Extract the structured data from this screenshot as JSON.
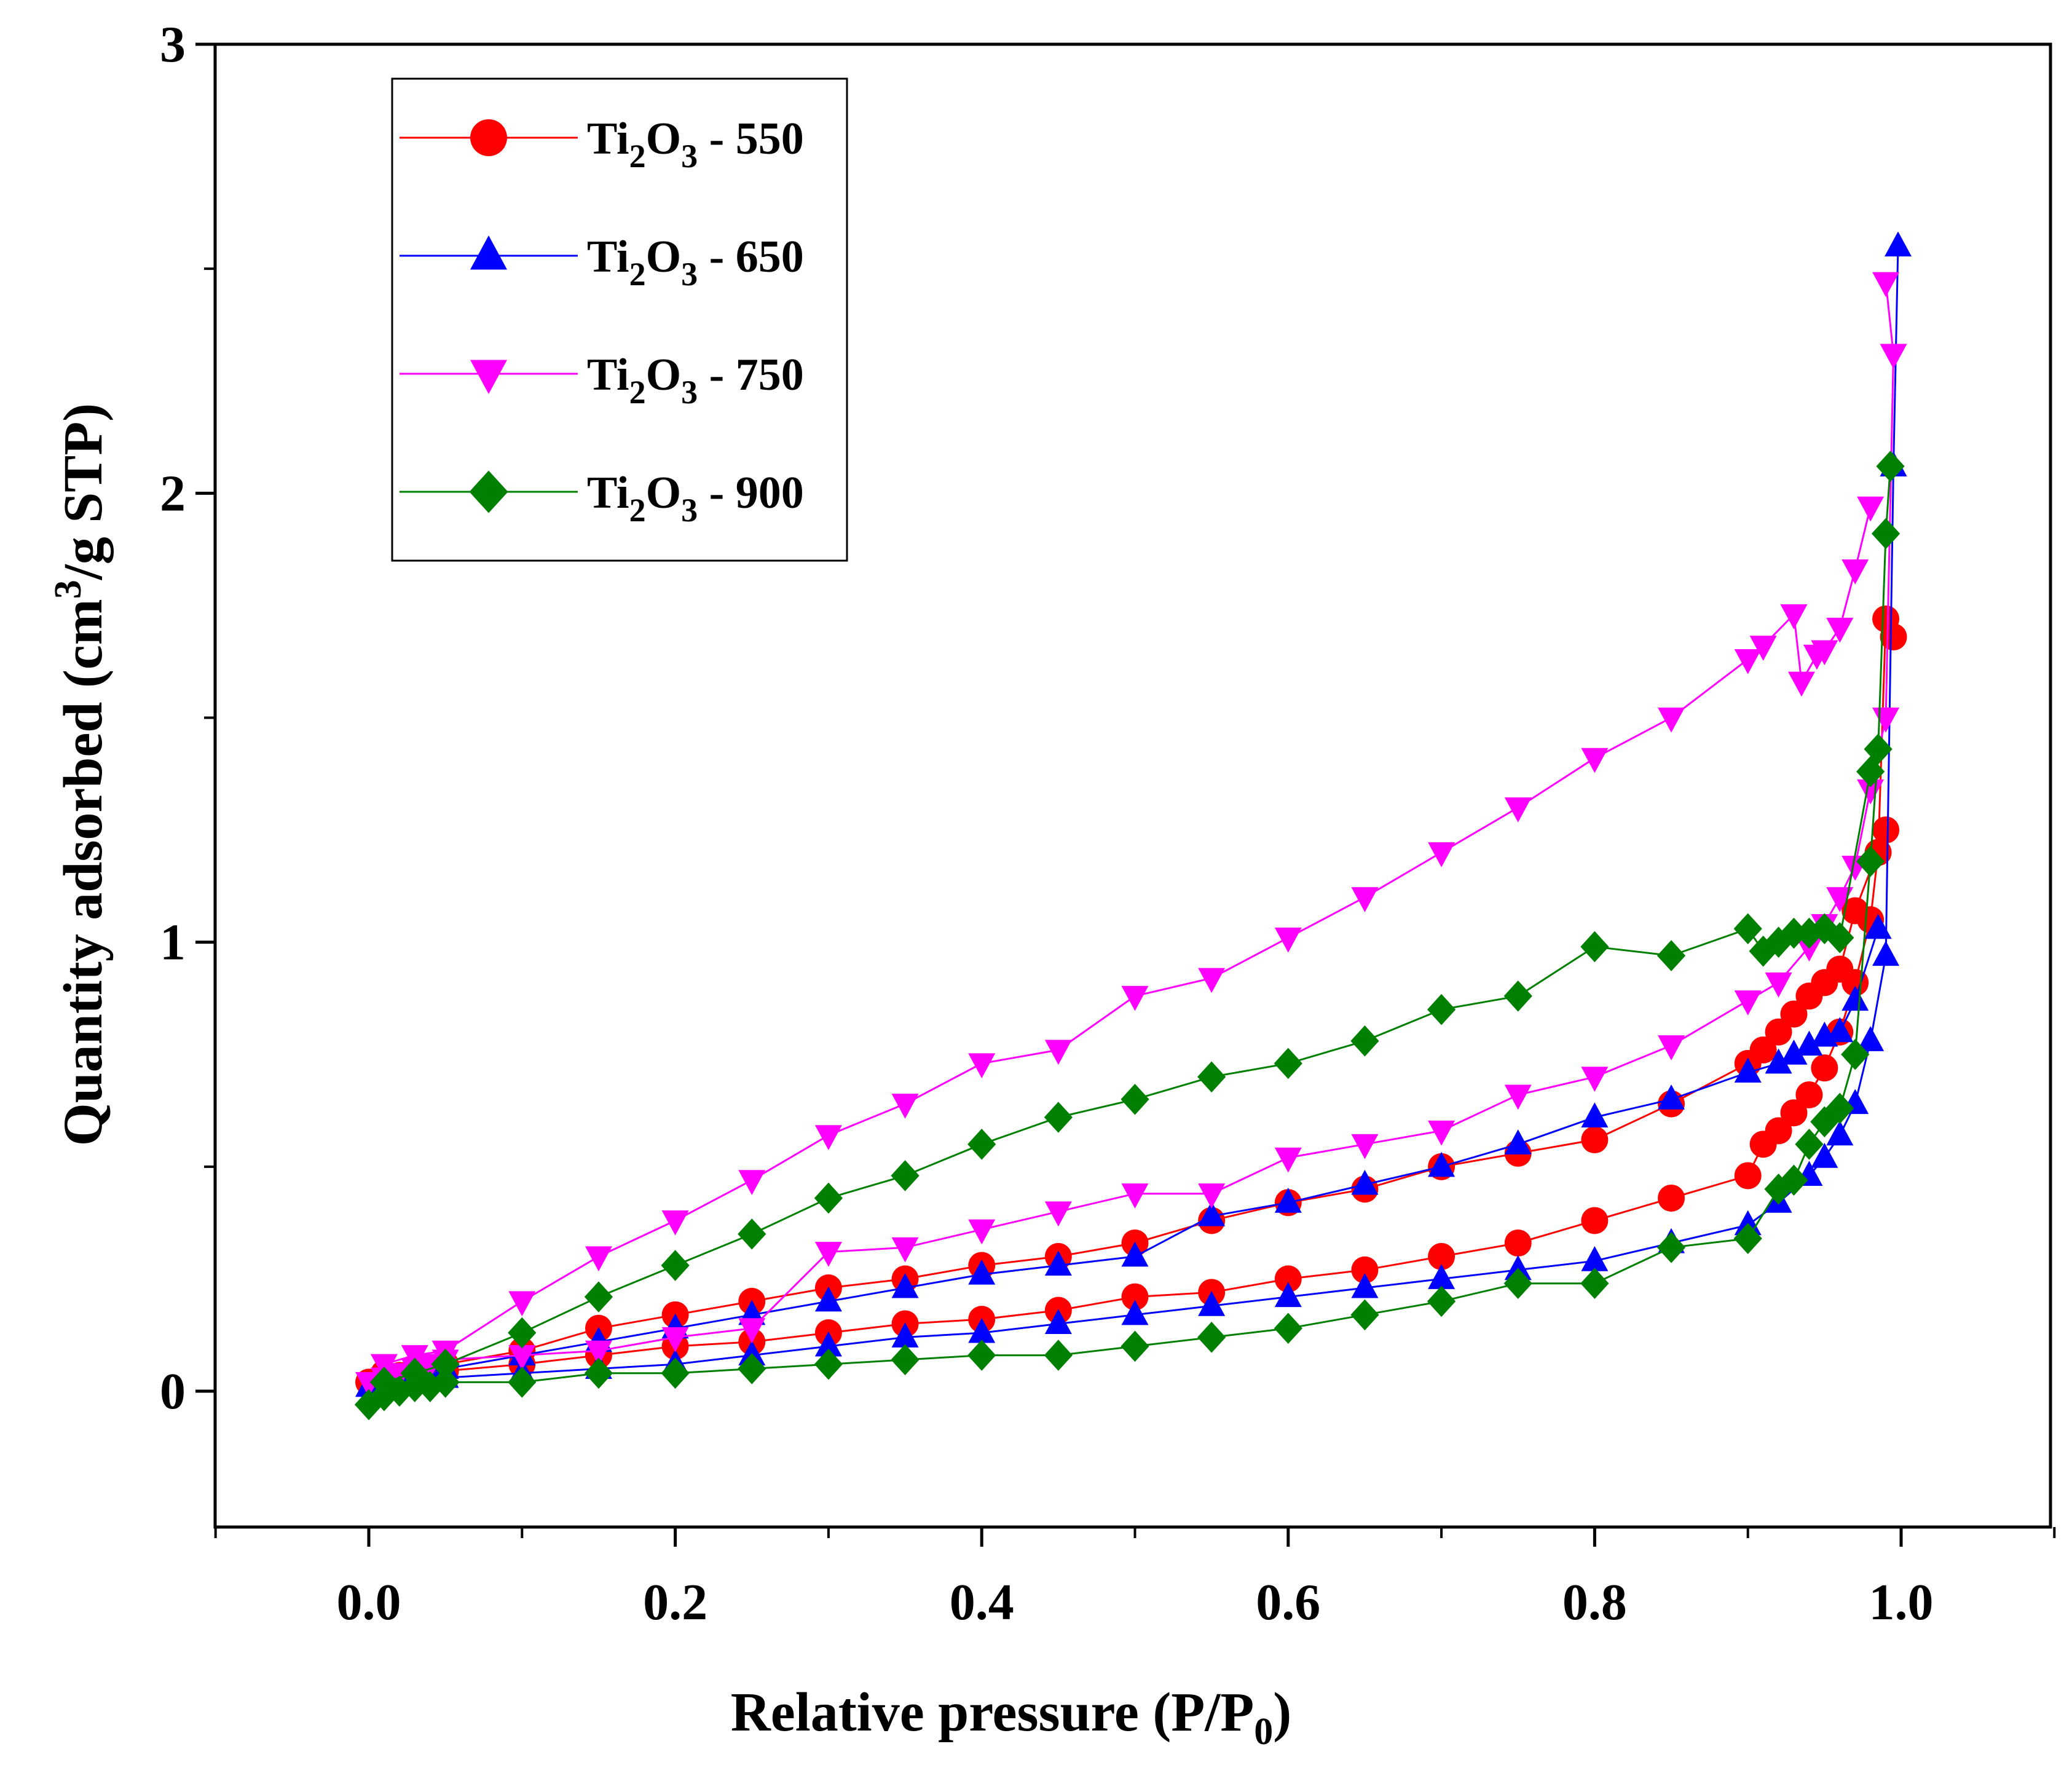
{
  "chart_data": {
    "type": "scatter",
    "title": "",
    "xlabel": {
      "main": "Relative pressure (P/P",
      "sub": "0",
      "close": ")"
    },
    "ylabel": {
      "main": "Quantity adsorbed (cm",
      "sup": "3",
      "rest": "/g STP)"
    },
    "xlim": [
      -0.1,
      1.12
    ],
    "ylim": [
      -0.3,
      3.0
    ],
    "xticks": [
      0.0,
      0.2,
      0.4,
      0.6,
      0.8,
      1.0
    ],
    "xtick_labels": [
      "0.0",
      "0.2",
      "0.4",
      "0.6",
      "0.8",
      "1.0"
    ],
    "yticks": [
      0,
      1,
      2,
      3
    ],
    "ytick_labels": [
      "0",
      "1",
      "2",
      "3"
    ],
    "legend_position": "top-left",
    "series": [
      {
        "name": "Ti2O3 - 550",
        "label_parts": [
          "Ti",
          "2",
          "O",
          "3",
          " - 550"
        ],
        "color": "#ff0000",
        "marker": "circle",
        "adsorption": [
          [
            0.0,
            0.02
          ],
          [
            0.01,
            0.03
          ],
          [
            0.02,
            0.035
          ],
          [
            0.03,
            0.04
          ],
          [
            0.04,
            0.04
          ],
          [
            0.05,
            0.045
          ],
          [
            0.1,
            0.06
          ],
          [
            0.15,
            0.08
          ],
          [
            0.2,
            0.1
          ],
          [
            0.25,
            0.11
          ],
          [
            0.3,
            0.13
          ],
          [
            0.35,
            0.15
          ],
          [
            0.4,
            0.16
          ],
          [
            0.45,
            0.18
          ],
          [
            0.5,
            0.21
          ],
          [
            0.55,
            0.22
          ],
          [
            0.6,
            0.25
          ],
          [
            0.65,
            0.27
          ],
          [
            0.7,
            0.3
          ],
          [
            0.75,
            0.33
          ],
          [
            0.8,
            0.38
          ],
          [
            0.85,
            0.43
          ],
          [
            0.9,
            0.48
          ],
          [
            0.91,
            0.55
          ],
          [
            0.92,
            0.58
          ],
          [
            0.93,
            0.62
          ],
          [
            0.94,
            0.66
          ],
          [
            0.95,
            0.72
          ],
          [
            0.96,
            0.8
          ],
          [
            0.97,
            0.91
          ],
          [
            0.98,
            1.05
          ],
          [
            0.985,
            1.2
          ],
          [
            0.99,
            1.72
          ],
          [
            0.995,
            1.68
          ]
        ],
        "desorption": [
          [
            0.99,
            1.25
          ],
          [
            0.97,
            1.07
          ],
          [
            0.96,
            0.94
          ],
          [
            0.95,
            0.91
          ],
          [
            0.94,
            0.88
          ],
          [
            0.93,
            0.84
          ],
          [
            0.92,
            0.8
          ],
          [
            0.91,
            0.76
          ],
          [
            0.9,
            0.73
          ],
          [
            0.85,
            0.64
          ],
          [
            0.8,
            0.56
          ],
          [
            0.75,
            0.53
          ],
          [
            0.7,
            0.5
          ],
          [
            0.65,
            0.45
          ],
          [
            0.6,
            0.42
          ],
          [
            0.55,
            0.38
          ],
          [
            0.5,
            0.33
          ],
          [
            0.45,
            0.3
          ],
          [
            0.4,
            0.28
          ],
          [
            0.35,
            0.25
          ],
          [
            0.3,
            0.23
          ],
          [
            0.25,
            0.2
          ],
          [
            0.2,
            0.17
          ],
          [
            0.15,
            0.14
          ],
          [
            0.1,
            0.09
          ],
          [
            0.05,
            0.06
          ],
          [
            0.03,
            0.05
          ],
          [
            0.01,
            0.04
          ]
        ]
      },
      {
        "name": "Ti2O3 - 650",
        "label_parts": [
          "Ti",
          "2",
          "O",
          "3",
          " - 650"
        ],
        "color": "#0000ff",
        "marker": "triangle-up",
        "adsorption": [
          [
            0.0,
            0.01
          ],
          [
            0.01,
            0.02
          ],
          [
            0.02,
            0.02
          ],
          [
            0.03,
            0.03
          ],
          [
            0.04,
            0.03
          ],
          [
            0.05,
            0.03
          ],
          [
            0.1,
            0.04
          ],
          [
            0.15,
            0.05
          ],
          [
            0.2,
            0.06
          ],
          [
            0.25,
            0.08
          ],
          [
            0.3,
            0.1
          ],
          [
            0.35,
            0.12
          ],
          [
            0.4,
            0.13
          ],
          [
            0.45,
            0.15
          ],
          [
            0.5,
            0.17
          ],
          [
            0.55,
            0.19
          ],
          [
            0.6,
            0.21
          ],
          [
            0.65,
            0.23
          ],
          [
            0.7,
            0.25
          ],
          [
            0.75,
            0.27
          ],
          [
            0.8,
            0.29
          ],
          [
            0.85,
            0.33
          ],
          [
            0.9,
            0.37
          ],
          [
            0.92,
            0.42
          ],
          [
            0.94,
            0.48
          ],
          [
            0.95,
            0.52
          ],
          [
            0.96,
            0.57
          ],
          [
            0.97,
            0.64
          ],
          [
            0.98,
            0.78
          ],
          [
            0.99,
            0.97
          ],
          [
            0.995,
            2.06
          ],
          [
            0.998,
            2.55
          ]
        ],
        "desorption": [
          [
            0.985,
            1.03
          ],
          [
            0.97,
            0.87
          ],
          [
            0.96,
            0.8
          ],
          [
            0.95,
            0.79
          ],
          [
            0.94,
            0.77
          ],
          [
            0.93,
            0.75
          ],
          [
            0.92,
            0.73
          ],
          [
            0.9,
            0.71
          ],
          [
            0.85,
            0.65
          ],
          [
            0.8,
            0.61
          ],
          [
            0.75,
            0.55
          ],
          [
            0.7,
            0.5
          ],
          [
            0.65,
            0.46
          ],
          [
            0.6,
            0.42
          ],
          [
            0.55,
            0.39
          ],
          [
            0.5,
            0.3
          ],
          [
            0.45,
            0.28
          ],
          [
            0.4,
            0.26
          ],
          [
            0.35,
            0.23
          ],
          [
            0.3,
            0.2
          ],
          [
            0.25,
            0.17
          ],
          [
            0.2,
            0.14
          ],
          [
            0.15,
            0.11
          ],
          [
            0.1,
            0.08
          ],
          [
            0.05,
            0.05
          ],
          [
            0.03,
            0.04
          ],
          [
            0.01,
            0.03
          ]
        ]
      },
      {
        "name": "Ti2O3 - 750",
        "label_parts": [
          "Ti",
          "2",
          "O",
          "3",
          " - 750"
        ],
        "color": "#ff00ff",
        "marker": "triangle-down",
        "adsorption": [
          [
            0.0,
            0.02
          ],
          [
            0.01,
            0.03
          ],
          [
            0.02,
            0.04
          ],
          [
            0.03,
            0.05
          ],
          [
            0.04,
            0.06
          ],
          [
            0.05,
            0.07
          ],
          [
            0.1,
            0.08
          ],
          [
            0.15,
            0.09
          ],
          [
            0.2,
            0.12
          ],
          [
            0.25,
            0.14
          ],
          [
            0.3,
            0.31
          ],
          [
            0.35,
            0.32
          ],
          [
            0.4,
            0.36
          ],
          [
            0.45,
            0.4
          ],
          [
            0.5,
            0.44
          ],
          [
            0.55,
            0.44
          ],
          [
            0.6,
            0.52
          ],
          [
            0.65,
            0.55
          ],
          [
            0.7,
            0.58
          ],
          [
            0.75,
            0.66
          ],
          [
            0.8,
            0.7
          ],
          [
            0.85,
            0.77
          ],
          [
            0.9,
            0.87
          ],
          [
            0.92,
            0.91
          ],
          [
            0.94,
            0.99
          ],
          [
            0.95,
            1.04
          ],
          [
            0.96,
            1.1
          ],
          [
            0.97,
            1.17
          ],
          [
            0.98,
            1.34
          ],
          [
            0.99,
            1.5
          ],
          [
            0.995,
            2.31
          ],
          [
            0.99,
            2.47
          ]
        ],
        "desorption": [
          [
            0.98,
            1.97
          ],
          [
            0.97,
            1.83
          ],
          [
            0.96,
            1.7
          ],
          [
            0.95,
            1.65
          ],
          [
            0.945,
            1.64
          ],
          [
            0.935,
            1.58
          ],
          [
            0.93,
            1.73
          ],
          [
            0.91,
            1.66
          ],
          [
            0.9,
            1.63
          ],
          [
            0.85,
            1.5
          ],
          [
            0.8,
            1.41
          ],
          [
            0.75,
            1.3
          ],
          [
            0.7,
            1.2
          ],
          [
            0.65,
            1.1
          ],
          [
            0.6,
            1.01
          ],
          [
            0.55,
            0.92
          ],
          [
            0.5,
            0.88
          ],
          [
            0.45,
            0.76
          ],
          [
            0.4,
            0.73
          ],
          [
            0.35,
            0.64
          ],
          [
            0.3,
            0.57
          ],
          [
            0.25,
            0.47
          ],
          [
            0.2,
            0.38
          ],
          [
            0.15,
            0.3
          ],
          [
            0.1,
            0.2
          ],
          [
            0.05,
            0.09
          ],
          [
            0.03,
            0.08
          ],
          [
            0.01,
            0.06
          ]
        ]
      },
      {
        "name": "Ti2O3 - 900",
        "label_parts": [
          "Ti",
          "2",
          "O",
          "3",
          " - 900"
        ],
        "color": "#008000",
        "marker": "diamond",
        "adsorption": [
          [
            0.0,
            -0.03
          ],
          [
            0.01,
            -0.01
          ],
          [
            0.02,
            0.0
          ],
          [
            0.03,
            0.01
          ],
          [
            0.04,
            0.01
          ],
          [
            0.05,
            0.02
          ],
          [
            0.1,
            0.02
          ],
          [
            0.15,
            0.04
          ],
          [
            0.2,
            0.04
          ],
          [
            0.25,
            0.05
          ],
          [
            0.3,
            0.06
          ],
          [
            0.35,
            0.07
          ],
          [
            0.4,
            0.08
          ],
          [
            0.45,
            0.08
          ],
          [
            0.5,
            0.1
          ],
          [
            0.55,
            0.12
          ],
          [
            0.6,
            0.14
          ],
          [
            0.65,
            0.17
          ],
          [
            0.7,
            0.2
          ],
          [
            0.75,
            0.24
          ],
          [
            0.8,
            0.24
          ],
          [
            0.85,
            0.32
          ],
          [
            0.9,
            0.34
          ],
          [
            0.92,
            0.45
          ],
          [
            0.93,
            0.47
          ],
          [
            0.94,
            0.55
          ],
          [
            0.95,
            0.6
          ],
          [
            0.96,
            0.63
          ],
          [
            0.97,
            0.75
          ],
          [
            0.98,
            1.18
          ],
          [
            0.985,
            1.43
          ],
          [
            0.99,
            1.91
          ],
          [
            0.993,
            2.06
          ]
        ],
        "desorption": [
          [
            0.98,
            1.38
          ],
          [
            0.96,
            1.01
          ],
          [
            0.95,
            1.03
          ],
          [
            0.94,
            1.02
          ],
          [
            0.93,
            1.02
          ],
          [
            0.92,
            1.0
          ],
          [
            0.91,
            0.98
          ],
          [
            0.9,
            1.03
          ],
          [
            0.85,
            0.97
          ],
          [
            0.8,
            0.99
          ],
          [
            0.75,
            0.88
          ],
          [
            0.7,
            0.85
          ],
          [
            0.65,
            0.78
          ],
          [
            0.6,
            0.73
          ],
          [
            0.55,
            0.7
          ],
          [
            0.5,
            0.65
          ],
          [
            0.45,
            0.61
          ],
          [
            0.4,
            0.55
          ],
          [
            0.35,
            0.48
          ],
          [
            0.3,
            0.43
          ],
          [
            0.25,
            0.35
          ],
          [
            0.2,
            0.28
          ],
          [
            0.15,
            0.21
          ],
          [
            0.1,
            0.13
          ],
          [
            0.05,
            0.06
          ],
          [
            0.03,
            0.04
          ],
          [
            0.01,
            0.02
          ]
        ]
      }
    ]
  }
}
